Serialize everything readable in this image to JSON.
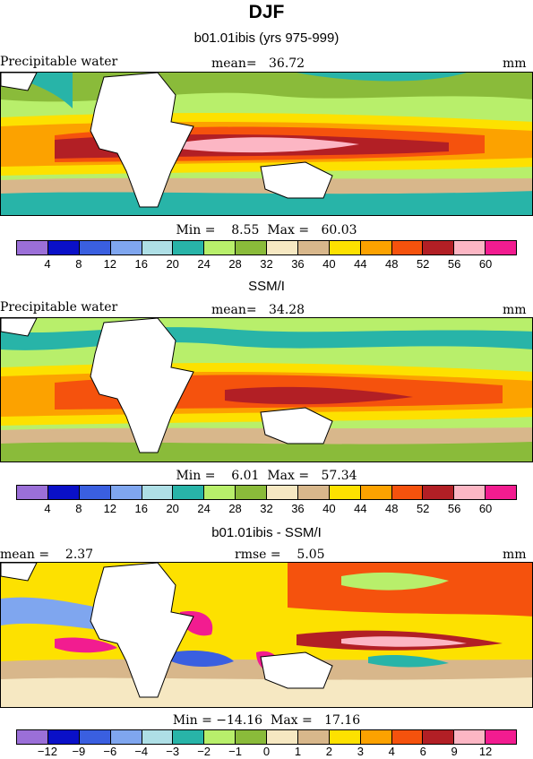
{
  "title": "DJF",
  "panels": [
    {
      "subtitle": "b01.01ibis (yrs 975-999)",
      "left_label": "Precipitable water",
      "center_label": "mean=   36.72",
      "right_label": "mm",
      "stats": "Min =    8.55  Max =   60.03",
      "colorbar": {
        "colors": [
          "#9b6fd8",
          "#0a10c8",
          "#3a5fe0",
          "#7fa6ef",
          "#aedfe6",
          "#28b4a8",
          "#b8ef6b",
          "#8abb3a",
          "#f6e8c2",
          "#d8b78b",
          "#fde100",
          "#fca200",
          "#f5520d",
          "#b21f25",
          "#fcb6c4",
          "#f21c90"
        ],
        "ticks": [
          "4",
          "8",
          "12",
          "16",
          "20",
          "24",
          "28",
          "32",
          "36",
          "40",
          "44",
          "48",
          "52",
          "56",
          "60"
        ]
      }
    },
    {
      "subtitle": "SSM/I",
      "left_label": "Precipitable water",
      "center_label": "mean=   34.28",
      "right_label": "mm",
      "stats": "Min =    6.01  Max =   57.34",
      "colorbar": {
        "colors": [
          "#9b6fd8",
          "#0a10c8",
          "#3a5fe0",
          "#7fa6ef",
          "#aedfe6",
          "#28b4a8",
          "#b8ef6b",
          "#8abb3a",
          "#f6e8c2",
          "#d8b78b",
          "#fde100",
          "#fca200",
          "#f5520d",
          "#b21f25",
          "#fcb6c4",
          "#f21c90"
        ],
        "ticks": [
          "4",
          "8",
          "12",
          "16",
          "20",
          "24",
          "28",
          "32",
          "36",
          "40",
          "44",
          "48",
          "52",
          "56",
          "60"
        ]
      }
    },
    {
      "subtitle": "b01.01ibis - SSM/I",
      "left_label": "mean =    2.37",
      "center_label": "rmse =    5.05",
      "right_label": "mm",
      "stats": "Min = −14.16  Max =   17.16",
      "colorbar": {
        "colors": [
          "#9b6fd8",
          "#0a10c8",
          "#3a5fe0",
          "#7fa6ef",
          "#aedfe6",
          "#28b4a8",
          "#b8ef6b",
          "#8abb3a",
          "#f6e8c2",
          "#d8b78b",
          "#fde100",
          "#fca200",
          "#f5520d",
          "#b21f25",
          "#fcb6c4",
          "#f21c90"
        ],
        "ticks": [
          "−12",
          "−9",
          "−6",
          "−4",
          "−3",
          "−2",
          "−1",
          "0",
          "1",
          "2",
          "3",
          "4",
          "6",
          "9",
          "12"
        ]
      }
    }
  ]
}
